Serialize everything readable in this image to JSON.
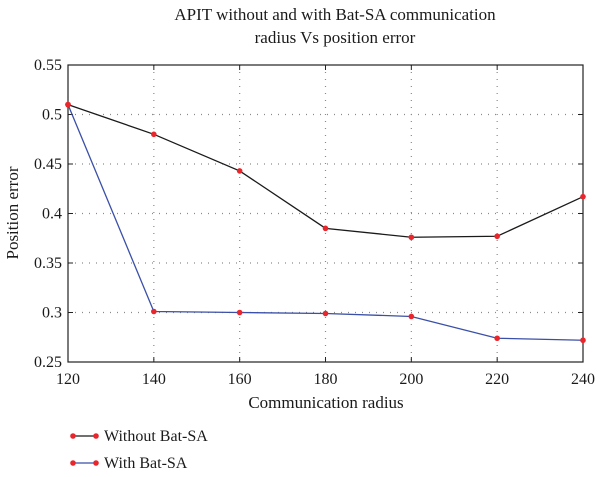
{
  "chart_data": {
    "type": "line",
    "title_lines": [
      "APIT without and with Bat-SA communication",
      "radius Vs position error"
    ],
    "xlabel": "Communication radius",
    "ylabel": "Position error",
    "x": [
      120,
      140,
      160,
      180,
      200,
      220,
      240
    ],
    "xlim": [
      120,
      240
    ],
    "ylim": [
      0.25,
      0.55
    ],
    "xticks": [
      "120",
      "140",
      "160",
      "180",
      "200",
      "220",
      "240"
    ],
    "yticks": [
      "0.25",
      "0.3",
      "0.35",
      "0.4",
      "0.45",
      "0.5",
      "0.55"
    ],
    "ytick_values": [
      0.25,
      0.3,
      0.35,
      0.4,
      0.45,
      0.5,
      0.55
    ],
    "grid": true,
    "legend_position": "below",
    "series": [
      {
        "name": "Without Bat-SA",
        "values": [
          0.51,
          0.48,
          0.443,
          0.385,
          0.376,
          0.377,
          0.417
        ],
        "line_color": "#1a1a1a",
        "marker_color": "#e8262b"
      },
      {
        "name": "With Bat-SA",
        "values": [
          0.51,
          0.301,
          0.3,
          0.299,
          0.296,
          0.274,
          0.272
        ],
        "line_color": "#3a4fa8",
        "marker_color": "#e8262b"
      }
    ]
  }
}
